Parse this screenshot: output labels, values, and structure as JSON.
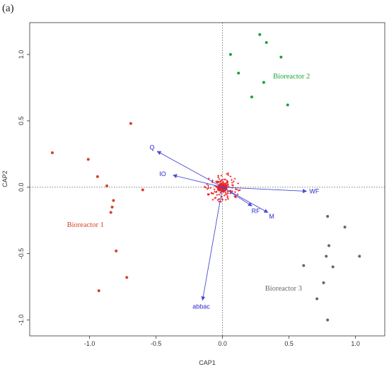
{
  "panel_label": "(a)",
  "chart_data": {
    "type": "scatter",
    "title": "",
    "xlabel": "CAP1",
    "ylabel": "CAP2",
    "xlim": [
      -1.45,
      1.22
    ],
    "ylim": [
      -1.12,
      1.24
    ],
    "xticks": [
      -1.0,
      -0.5,
      0.0,
      0.5,
      1.0
    ],
    "xtick_labels": [
      "-1.0",
      "-0.5",
      "0.0",
      "0.5",
      "1.0"
    ],
    "yticks": [
      -1.0,
      -0.5,
      0.0,
      0.5,
      1.0
    ],
    "ytick_labels": [
      "-1.0",
      "-0.5",
      "0.0",
      "0.5",
      "1.0"
    ],
    "reference_lines": {
      "x": 0,
      "y": 0,
      "style": "dotted"
    },
    "grid": false,
    "groups": [
      {
        "label": "Bioreactor 1",
        "color": "#d4432a",
        "label_at": [
          -1.17,
          -0.3
        ],
        "points": [
          [
            -1.28,
            0.26
          ],
          [
            -1.01,
            0.21
          ],
          [
            -0.94,
            0.08
          ],
          [
            -0.69,
            0.48
          ],
          [
            -0.87,
            0.01
          ],
          [
            -0.6,
            -0.02
          ],
          [
            -0.82,
            -0.1
          ],
          [
            -0.83,
            -0.15
          ],
          [
            -0.84,
            -0.19
          ],
          [
            -0.8,
            -0.48
          ],
          [
            -0.72,
            -0.68
          ],
          [
            -0.93,
            -0.78
          ]
        ]
      },
      {
        "label": "Bioreactor 2",
        "color": "#1aa33a",
        "label_at": [
          0.38,
          0.82
        ],
        "points": [
          [
            0.28,
            1.15
          ],
          [
            0.33,
            1.09
          ],
          [
            0.06,
            1.0
          ],
          [
            0.44,
            0.98
          ],
          [
            0.12,
            0.86
          ],
          [
            0.31,
            0.79
          ],
          [
            0.22,
            0.68
          ],
          [
            0.49,
            0.62
          ]
        ]
      },
      {
        "label": "Bioreactor 3",
        "color": "#666666",
        "label_at": [
          0.32,
          -0.78
        ],
        "points": [
          [
            0.79,
            -0.22
          ],
          [
            0.92,
            -0.3
          ],
          [
            0.8,
            -0.44
          ],
          [
            1.03,
            -0.52
          ],
          [
            0.78,
            -0.52
          ],
          [
            0.83,
            -0.6
          ],
          [
            0.61,
            -0.59
          ],
          [
            0.76,
            -0.72
          ],
          [
            0.71,
            -0.84
          ],
          [
            0.79,
            -1.0
          ]
        ]
      }
    ],
    "species_cloud": {
      "color": "#ee1c1c",
      "center": [
        0.0,
        0.0
      ],
      "note_count": 220
    },
    "vectors": {
      "color": "#4a4ad6",
      "items": [
        {
          "label": "Q",
          "end": [
            -0.49,
            0.27
          ],
          "label_at": [
            -0.53,
            0.3
          ]
        },
        {
          "label": "IO",
          "end": [
            -0.37,
            0.09
          ],
          "label_at": [
            -0.45,
            0.1
          ]
        },
        {
          "label": "WF",
          "end": [
            0.63,
            -0.03
          ],
          "label_at": [
            0.69,
            -0.03
          ]
        },
        {
          "label": "RF",
          "end": [
            0.22,
            -0.14
          ],
          "label_at": [
            0.25,
            -0.18
          ]
        },
        {
          "label": "M",
          "end": [
            0.34,
            -0.19
          ],
          "label_at": [
            0.37,
            -0.22
          ]
        },
        {
          "label": "abbac",
          "end": [
            -0.15,
            -0.85
          ],
          "label_at": [
            -0.16,
            -0.9
          ]
        }
      ]
    }
  }
}
